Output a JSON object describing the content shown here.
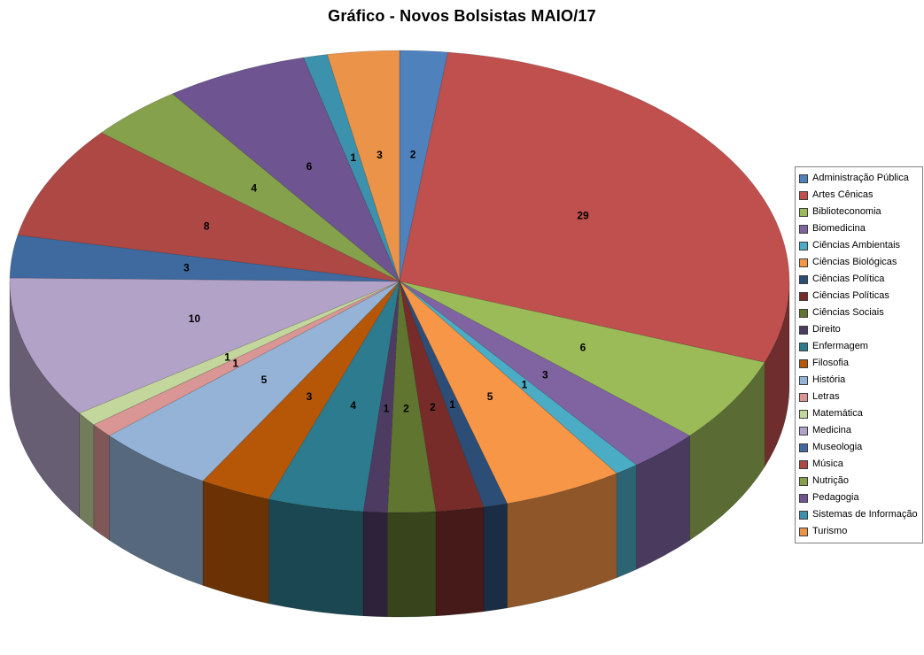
{
  "chart_data": {
    "type": "pie",
    "three_d": true,
    "title": "Gráfico - Novos Bolsistas MAIO/17",
    "legend_position": "right",
    "data_labels": "values",
    "categories": [
      "Administração Pública",
      "Artes Cênicas",
      "Biblioteconomia",
      "Biomedicina",
      "Ciências Ambientais",
      "Ciências Biológicas",
      "Ciências Política",
      "Ciências Políticas",
      "Ciências Sociais",
      "Direito",
      "Enfermagem",
      "Filosofia",
      "História",
      "Letras",
      "Matemática",
      "Medicina",
      "Museologia",
      "Música",
      "Nutrição",
      "Pedagogia",
      "Sistemas de Informação",
      "Turismo"
    ],
    "values": [
      2,
      29,
      6,
      3,
      1,
      5,
      1,
      2,
      2,
      1,
      4,
      3,
      5,
      1,
      1,
      10,
      3,
      8,
      4,
      6,
      1,
      3
    ],
    "colors": [
      "#4F81BD",
      "#C0504D",
      "#9BBB59",
      "#8064A2",
      "#4BACC6",
      "#F79646",
      "#2C4D75",
      "#772C2A",
      "#5F7530",
      "#4D3B62",
      "#2D7B8E",
      "#B65708",
      "#95B3D7",
      "#D99694",
      "#C3D69B",
      "#B3A2C7",
      "#3E6A9F",
      "#AE4845",
      "#85A14B",
      "#6E5490",
      "#3C92AC",
      "#EB9348"
    ],
    "background_color": "#FFFFFF",
    "title_color": "#000000",
    "label_color": "#000000"
  }
}
